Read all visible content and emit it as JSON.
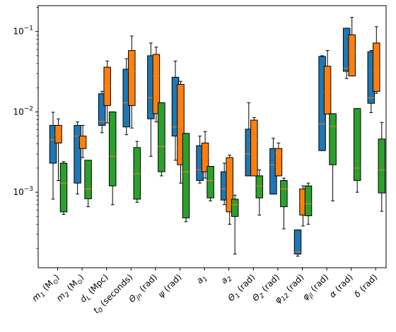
{
  "chart_data": {
    "type": "box",
    "yscale": "log",
    "ylim": [
      0.0001,
      0.2
    ],
    "y_ticks": [
      {
        "value": 0.001,
        "base": "10",
        "exp": "−3"
      },
      {
        "value": 0.01,
        "base": "10",
        "exp": "−2"
      },
      {
        "value": 0.1,
        "base": "10",
        "exp": "−1"
      }
    ],
    "categories": [
      {
        "pre": "m",
        "sub": "1",
        "post": " (M",
        "sub2": "⊙",
        "post2": ")"
      },
      {
        "pre": "m",
        "sub": "2",
        "post": " (M",
        "sub2": "⊙",
        "post2": ")"
      },
      {
        "pre": "d",
        "sub": "L",
        "post": " (Mpc)",
        "sub2": "",
        "post2": ""
      },
      {
        "pre": "t",
        "sub": "0",
        "post": " (seconds)",
        "sub2": "",
        "post2": ""
      },
      {
        "pre": "Θ",
        "sub": "jn",
        "post": " (rad)",
        "sub2": "",
        "post2": ""
      },
      {
        "pre": "ψ",
        "sub": "",
        "post": " (rad)",
        "sub2": "",
        "post2": ""
      },
      {
        "pre": "a",
        "sub": "1",
        "post": "",
        "sub2": "",
        "post2": ""
      },
      {
        "pre": "a",
        "sub": "2",
        "post": "",
        "sub2": "",
        "post2": ""
      },
      {
        "pre": "Θ",
        "sub": "1",
        "post": " (rad)",
        "sub2": "",
        "post2": ""
      },
      {
        "pre": "Θ",
        "sub": "2",
        "post": " (rad)",
        "sub2": "",
        "post2": ""
      },
      {
        "pre": "φ",
        "sub": "12",
        "post": " (rad)",
        "sub2": "",
        "post2": ""
      },
      {
        "pre": "φ",
        "sub": "jl",
        "post": " (rad)",
        "sub2": "",
        "post2": ""
      },
      {
        "pre": "α",
        "sub": "",
        "post": " (rad)",
        "sub2": "",
        "post2": ""
      },
      {
        "pre": "δ",
        "sub": "",
        "post": " (rad)",
        "sub2": "",
        "post2": ""
      }
    ],
    "series": [
      {
        "color": "#1f77b4",
        "boxes": [
          {
            "whislo": 0.00082,
            "q1": 0.0023,
            "med": 0.0045,
            "q3": 0.0068,
            "whishi": 0.0099
          },
          {
            "whislo": 0.00095,
            "q1": 0.0013,
            "med": 0.005,
            "q3": 0.0068,
            "whishi": 0.0075
          },
          {
            "whislo": 0.0055,
            "q1": 0.0068,
            "med": 0.0076,
            "q3": 0.0168,
            "whishi": 0.018
          },
          {
            "whislo": 0.0052,
            "q1": 0.0065,
            "med": 0.013,
            "q3": 0.034,
            "whishi": 0.046
          },
          {
            "whislo": 0.0028,
            "q1": 0.0082,
            "med": 0.015,
            "q3": 0.05,
            "whishi": 0.072
          },
          {
            "whislo": 0.0025,
            "q1": 0.005,
            "med": 0.0065,
            "q3": 0.027,
            "whishi": 0.043
          },
          {
            "whislo": 0.0013,
            "q1": 0.0014,
            "med": 0.0019,
            "q3": 0.0038,
            "whishi": 0.005
          },
          {
            "whislo": 0.0007,
            "q1": 0.0008,
            "med": 0.0011,
            "q3": 0.0018,
            "whishi": 0.0023
          },
          {
            "whislo": 0.0016,
            "q1": 0.0016,
            "med": 0.003,
            "q3": 0.0061,
            "whishi": 0.013
          },
          {
            "whislo": 0.00095,
            "q1": 0.00095,
            "med": 0.0022,
            "q3": 0.0035,
            "whishi": 0.0047
          },
          {
            "whislo": 0.00016,
            "q1": 0.00017,
            "med": 0.00018,
            "q3": 0.00034,
            "whishi": 0.00034
          },
          {
            "whislo": 0.0033,
            "q1": 0.0033,
            "med": 0.0071,
            "q3": 0.049,
            "whishi": 0.05
          },
          {
            "whislo": 0.026,
            "q1": 0.032,
            "med": 0.035,
            "q3": 0.11,
            "whishi": 0.11
          },
          {
            "whislo": 0.0098,
            "q1": 0.0128,
            "med": 0.015,
            "q3": 0.056,
            "whishi": 0.058
          }
        ]
      },
      {
        "color": "#ff7f0e",
        "boxes": [
          {
            "whislo": 0.0014,
            "q1": 0.0041,
            "med": 0.0052,
            "q3": 0.0068,
            "whishi": 0.0082
          },
          {
            "whislo": 0.0027,
            "q1": 0.0035,
            "med": 0.0045,
            "q3": 0.005,
            "whishi": 0.0068
          },
          {
            "whislo": 0.0073,
            "q1": 0.012,
            "med": 0.021,
            "q3": 0.036,
            "whishi": 0.043
          },
          {
            "whislo": 0.0063,
            "q1": 0.012,
            "med": 0.032,
            "q3": 0.058,
            "whishi": 0.088
          },
          {
            "whislo": 0.0075,
            "q1": 0.0095,
            "med": 0.028,
            "q3": 0.052,
            "whishi": 0.064
          },
          {
            "whislo": 0.0013,
            "q1": 0.0022,
            "med": 0.0035,
            "q3": 0.022,
            "whishi": 0.024
          },
          {
            "whislo": 0.0015,
            "q1": 0.0018,
            "med": 0.0028,
            "q3": 0.0041,
            "whishi": 0.0057
          },
          {
            "whislo": 0.0004,
            "q1": 0.00057,
            "med": 0.00095,
            "q3": 0.0027,
            "whishi": 0.0029
          },
          {
            "whislo": 0.0016,
            "q1": 0.0016,
            "med": 0.0045,
            "q3": 0.0079,
            "whishi": 0.0085
          },
          {
            "whislo": 0.0016,
            "q1": 0.0016,
            "med": 0.0031,
            "q3": 0.0035,
            "whishi": 0.0041
          },
          {
            "whislo": 0.00038,
            "q1": 0.00052,
            "med": 0.00078,
            "q3": 0.0011,
            "whishi": 0.0012
          },
          {
            "whislo": 0.0094,
            "q1": 0.0094,
            "med": 0.018,
            "q3": 0.037,
            "whishi": 0.058
          },
          {
            "whislo": 0.028,
            "q1": 0.028,
            "med": 0.055,
            "q3": 0.091,
            "whishi": 0.15
          },
          {
            "whislo": 0.017,
            "q1": 0.018,
            "med": 0.033,
            "q3": 0.072,
            "whishi": 0.115
          }
        ]
      },
      {
        "color": "#2ca02c",
        "boxes": [
          {
            "whislo": 0.00053,
            "q1": 0.00057,
            "med": 0.0013,
            "q3": 0.0023,
            "whishi": 0.0024
          },
          {
            "whislo": 0.00066,
            "q1": 0.00083,
            "med": 0.0011,
            "q3": 0.0025,
            "whishi": 0.0025
          },
          {
            "whislo": 0.0007,
            "q1": 0.0012,
            "med": 0.0028,
            "q3": 0.01,
            "whishi": 0.01
          },
          {
            "whislo": 0.00075,
            "q1": 0.00082,
            "med": 0.0017,
            "q3": 0.0036,
            "whishi": 0.0043
          },
          {
            "whislo": 0.0016,
            "q1": 0.0018,
            "med": 0.0037,
            "q3": 0.013,
            "whishi": 0.013
          },
          {
            "whislo": 0.00043,
            "q1": 0.00048,
            "med": 0.0018,
            "q3": 0.0054,
            "whishi": 0.0054
          },
          {
            "whislo": 0.00078,
            "q1": 0.00085,
            "med": 0.0014,
            "q3": 0.0021,
            "whishi": 0.0021
          },
          {
            "whislo": 0.00017,
            "q1": 0.0005,
            "med": 0.0007,
            "q3": 0.00082,
            "whishi": 0.00092
          },
          {
            "whislo": 0.00052,
            "q1": 0.00085,
            "med": 0.0012,
            "q3": 0.0016,
            "whishi": 0.0019
          },
          {
            "whislo": 0.00035,
            "q1": 0.00066,
            "med": 0.0011,
            "q3": 0.0014,
            "whishi": 0.0015
          },
          {
            "whislo": 0.0004,
            "q1": 0.00051,
            "med": 0.00072,
            "q3": 0.0012,
            "whishi": 0.0013
          },
          {
            "whislo": 0.00078,
            "q1": 0.0022,
            "med": 0.0066,
            "q3": 0.0095,
            "whishi": 0.0095
          },
          {
            "whislo": 0.001,
            "q1": 0.0014,
            "med": 0.002,
            "q3": 0.011,
            "whishi": 0.011
          },
          {
            "whislo": 0.00058,
            "q1": 0.00098,
            "med": 0.0019,
            "q3": 0.0046,
            "whishi": 0.0074
          }
        ]
      }
    ],
    "grid": false,
    "legend": "none"
  }
}
